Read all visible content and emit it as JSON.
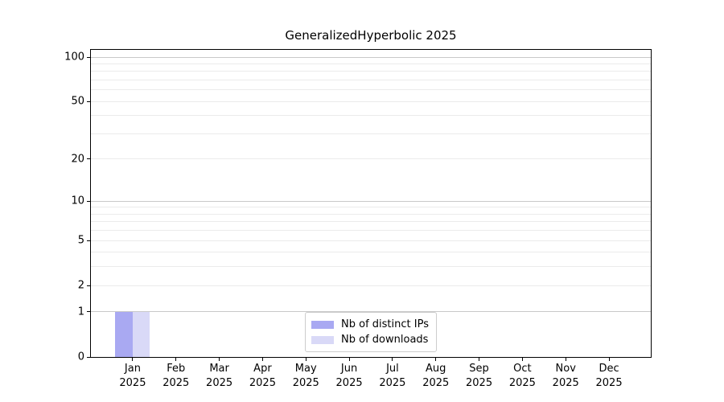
{
  "chart_data": {
    "type": "bar",
    "title": "GeneralizedHyperbolic 2025",
    "categories": [
      "Jan",
      "Feb",
      "Mar",
      "Apr",
      "May",
      "Jun",
      "Jul",
      "Aug",
      "Sep",
      "Oct",
      "Nov",
      "Dec"
    ],
    "x_year_label": "2025",
    "series": [
      {
        "name": "Nb of distinct IPs",
        "color": "#a9a9f2",
        "values": [
          1,
          0,
          0,
          0,
          0,
          0,
          0,
          0,
          0,
          0,
          0,
          0
        ]
      },
      {
        "name": "Nb of downloads",
        "color": "#d9d9f7",
        "values": [
          1,
          0,
          0,
          0,
          0,
          0,
          0,
          0,
          0,
          0,
          0,
          0
        ]
      }
    ],
    "yscale": "log1p",
    "ylim": [
      0,
      112
    ],
    "xlim": [
      -0.965,
      11.965
    ],
    "bar_width": 0.4,
    "yticks": {
      "values": [
        0,
        1,
        2,
        5,
        10,
        20,
        50,
        100
      ],
      "labels": [
        "0",
        "1",
        "2",
        "5",
        "10",
        "20",
        "50",
        "100"
      ]
    },
    "grid": {
      "show": true,
      "major_values": [
        1,
        10,
        100
      ],
      "minor_values": [
        2,
        3,
        4,
        5,
        6,
        7,
        8,
        9,
        20,
        30,
        40,
        50,
        60,
        70,
        80,
        90
      ],
      "major_color": "#c9c9c9",
      "minor_color": "#ebebeb"
    },
    "legend": {
      "location": "lower center"
    },
    "axis_color": "#000000",
    "text_color": "#000000",
    "background": "#ffffff"
  }
}
